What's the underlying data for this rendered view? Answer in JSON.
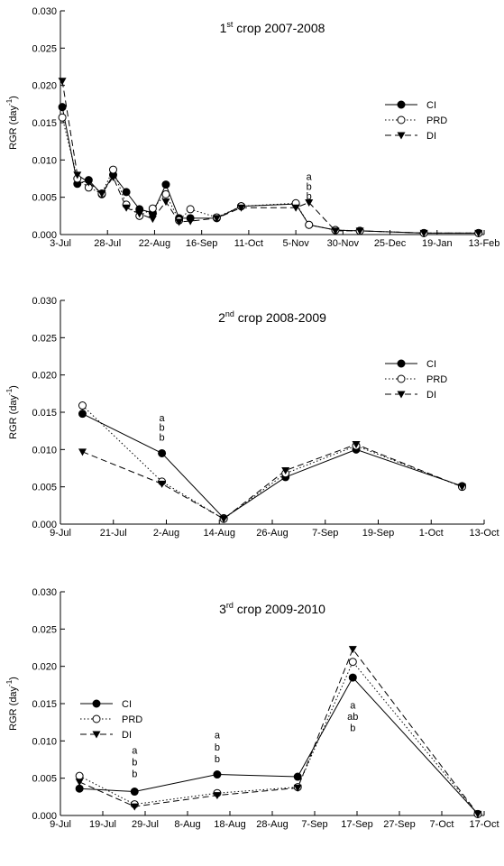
{
  "chart_data": [
    {
      "type": "line",
      "title": {
        "number": "1",
        "suffix": "st",
        "rest": " crop 2007-2008"
      },
      "ylabel": {
        "text": "RGR (day",
        "sup": "-1",
        "close": ")"
      },
      "x": [
        1,
        9,
        15,
        22,
        28,
        35,
        42,
        49,
        56,
        63,
        69,
        83,
        96,
        125,
        132,
        146,
        159,
        193,
        222
      ],
      "series": [
        {
          "name": "CI",
          "color": "#000000",
          "marker": "filled-circle",
          "dash": "solid",
          "values": [
            0.0171,
            0.0068,
            0.0073,
            0.0054,
            0.008,
            0.0057,
            0.0034,
            0.0029,
            0.0067,
            0.0022,
            0.0022,
            0.0022,
            0.0038,
            0.0041,
            0.0013,
            0.0006,
            0.0005,
            0.0002,
            0.0002
          ]
        },
        {
          "name": "PRD",
          "color": "#000000",
          "marker": "open-circle",
          "dash": "dotted",
          "values": [
            0.0157,
            0.0075,
            0.0063,
            0.0055,
            0.0087,
            0.004,
            0.0025,
            0.0035,
            0.0054,
            0.0019,
            0.0034,
            0.0023,
            0.0038,
            0.0042,
            0.0013,
            0.0006,
            0.0005,
            0.0002,
            0.0002
          ]
        },
        {
          "name": "DI",
          "color": "#000000",
          "marker": "filled-triangle-down",
          "dash": "dashed",
          "values": [
            0.0206,
            0.008,
            0.007,
            0.0055,
            0.0077,
            0.0036,
            0.0028,
            0.0021,
            0.0044,
            0.0017,
            0.0018,
            0.0022,
            0.0036,
            0.0036,
            0.0043,
            0.0005,
            0.0005,
            0.0002,
            0.0002
          ]
        }
      ],
      "annotations": [
        {
          "text": "a",
          "x": 132,
          "y": 0.0078
        },
        {
          "text": "b",
          "x": 132,
          "y": 0.0065
        },
        {
          "text": "b",
          "x": 132,
          "y": 0.0052
        }
      ],
      "xlim": [
        0,
        225
      ],
      "xticks": [
        {
          "value": 0,
          "label": "3-Jul"
        },
        {
          "value": 25,
          "label": "28-Jul"
        },
        {
          "value": 50,
          "label": "22-Aug"
        },
        {
          "value": 75,
          "label": "16-Sep"
        },
        {
          "value": 100,
          "label": "11-Oct"
        },
        {
          "value": 125,
          "label": "5-Nov"
        },
        {
          "value": 150,
          "label": "30-Nov"
        },
        {
          "value": 175,
          "label": "25-Dec"
        },
        {
          "value": 200,
          "label": "19-Jan"
        },
        {
          "value": 225,
          "label": "13-Feb"
        }
      ],
      "ylim": [
        0,
        0.03
      ],
      "yticks": [
        {
          "value": 0,
          "label": "0.000"
        },
        {
          "value": 0.005,
          "label": "0.005"
        },
        {
          "value": 0.01,
          "label": "0.010"
        },
        {
          "value": 0.015,
          "label": "0.015"
        },
        {
          "value": 0.02,
          "label": "0.020"
        },
        {
          "value": 0.025,
          "label": "0.025"
        },
        {
          "value": 0.03,
          "label": "0.030"
        }
      ],
      "legend": "center right"
    },
    {
      "type": "line",
      "title": {
        "number": "2",
        "suffix": "nd",
        "rest": " crop 2008-2009"
      },
      "ylabel": {
        "text": "RGR (day",
        "sup": "-1",
        "close": ")"
      },
      "x": [
        5,
        23,
        37,
        51,
        67,
        91
      ],
      "series": [
        {
          "name": "CI",
          "color": "#000000",
          "marker": "filled-circle",
          "dash": "solid",
          "values": [
            0.0148,
            0.0095,
            0.0008,
            0.0063,
            0.01,
            0.0051
          ]
        },
        {
          "name": "PRD",
          "color": "#000000",
          "marker": "open-circle",
          "dash": "dotted",
          "values": [
            0.0159,
            0.0057,
            0.0007,
            0.0068,
            0.0105,
            0.005
          ]
        },
        {
          "name": "DI",
          "color": "#000000",
          "marker": "filled-triangle-down",
          "dash": "dashed",
          "values": [
            0.0097,
            0.0054,
            0.0007,
            0.0072,
            0.0107,
            0.005
          ]
        }
      ],
      "annotations": [
        {
          "text": "a",
          "x": 23,
          "y": 0.0143
        },
        {
          "text": "b",
          "x": 23,
          "y": 0.013
        },
        {
          "text": "b",
          "x": 23,
          "y": 0.0117
        }
      ],
      "xlim": [
        0,
        96
      ],
      "xticks": [
        {
          "value": 0,
          "label": "9-Jul"
        },
        {
          "value": 12,
          "label": "21-Jul"
        },
        {
          "value": 24,
          "label": "2-Aug"
        },
        {
          "value": 36,
          "label": "14-Aug"
        },
        {
          "value": 48,
          "label": "26-Aug"
        },
        {
          "value": 60,
          "label": "7-Sep"
        },
        {
          "value": 72,
          "label": "19-Sep"
        },
        {
          "value": 84,
          "label": "1-Oct"
        },
        {
          "value": 96,
          "label": "13-Oct"
        }
      ],
      "ylim": [
        0,
        0.03
      ],
      "yticks": [
        {
          "value": 0,
          "label": "0.000"
        },
        {
          "value": 0.005,
          "label": "0.005"
        },
        {
          "value": 0.01,
          "label": "0.010"
        },
        {
          "value": 0.015,
          "label": "0.015"
        },
        {
          "value": 0.02,
          "label": "0.020"
        },
        {
          "value": 0.025,
          "label": "0.025"
        },
        {
          "value": 0.03,
          "label": "0.030"
        }
      ],
      "legend": "upper right"
    },
    {
      "type": "line",
      "title": {
        "number": "3",
        "suffix": "rd",
        "rest": " crop 2009-2010"
      },
      "ylabel": {
        "text": "RGR (day",
        "sup": "-1",
        "close": ")"
      },
      "x": [
        4.5,
        17.5,
        37,
        56,
        69,
        98.5
      ],
      "series": [
        {
          "name": "CI",
          "color": "#000000",
          "marker": "filled-circle",
          "dash": "solid",
          "values": [
            0.0036,
            0.0032,
            0.0055,
            0.0052,
            0.0185,
            0.0002
          ]
        },
        {
          "name": "PRD",
          "color": "#000000",
          "marker": "open-circle",
          "dash": "dotted",
          "values": [
            0.0053,
            0.0015,
            0.003,
            0.0038,
            0.0206,
            0.0002
          ]
        },
        {
          "name": "DI",
          "color": "#000000",
          "marker": "filled-triangle-down",
          "dash": "dashed",
          "values": [
            0.0045,
            0.0012,
            0.0027,
            0.0037,
            0.0223,
            0.0002
          ]
        }
      ],
      "annotations": [
        {
          "text": "a",
          "x": 17.5,
          "y": 0.0088
        },
        {
          "text": "b",
          "x": 17.5,
          "y": 0.0072
        },
        {
          "text": "b",
          "x": 17.5,
          "y": 0.0056
        },
        {
          "text": "a",
          "x": 37,
          "y": 0.0108
        },
        {
          "text": "b",
          "x": 37,
          "y": 0.0092
        },
        {
          "text": "b",
          "x": 37,
          "y": 0.0076
        },
        {
          "text": "a",
          "x": 69,
          "y": 0.0148
        },
        {
          "text": "ab",
          "x": 69,
          "y": 0.0133
        },
        {
          "text": "b",
          "x": 69,
          "y": 0.0118
        }
      ],
      "xlim": [
        0,
        100
      ],
      "xticks": [
        {
          "value": 0,
          "label": "9-Jul"
        },
        {
          "value": 10,
          "label": "19-Jul"
        },
        {
          "value": 20,
          "label": "29-Jul"
        },
        {
          "value": 30,
          "label": "8-Aug"
        },
        {
          "value": 40,
          "label": "18-Aug"
        },
        {
          "value": 50,
          "label": "28-Aug"
        },
        {
          "value": 60,
          "label": "7-Sep"
        },
        {
          "value": 70,
          "label": "17-Sep"
        },
        {
          "value": 80,
          "label": "27-Sep"
        },
        {
          "value": 90,
          "label": "7-Oct"
        },
        {
          "value": 100,
          "label": "17-Oct"
        }
      ],
      "ylim": [
        0,
        0.03
      ],
      "yticks": [
        {
          "value": 0,
          "label": "0.000"
        },
        {
          "value": 0.005,
          "label": "0.005"
        },
        {
          "value": 0.01,
          "label": "0.010"
        },
        {
          "value": 0.015,
          "label": "0.015"
        },
        {
          "value": 0.02,
          "label": "0.020"
        },
        {
          "value": 0.025,
          "label": "0.025"
        },
        {
          "value": 0.03,
          "label": "0.030"
        }
      ],
      "legend": "center left"
    }
  ]
}
